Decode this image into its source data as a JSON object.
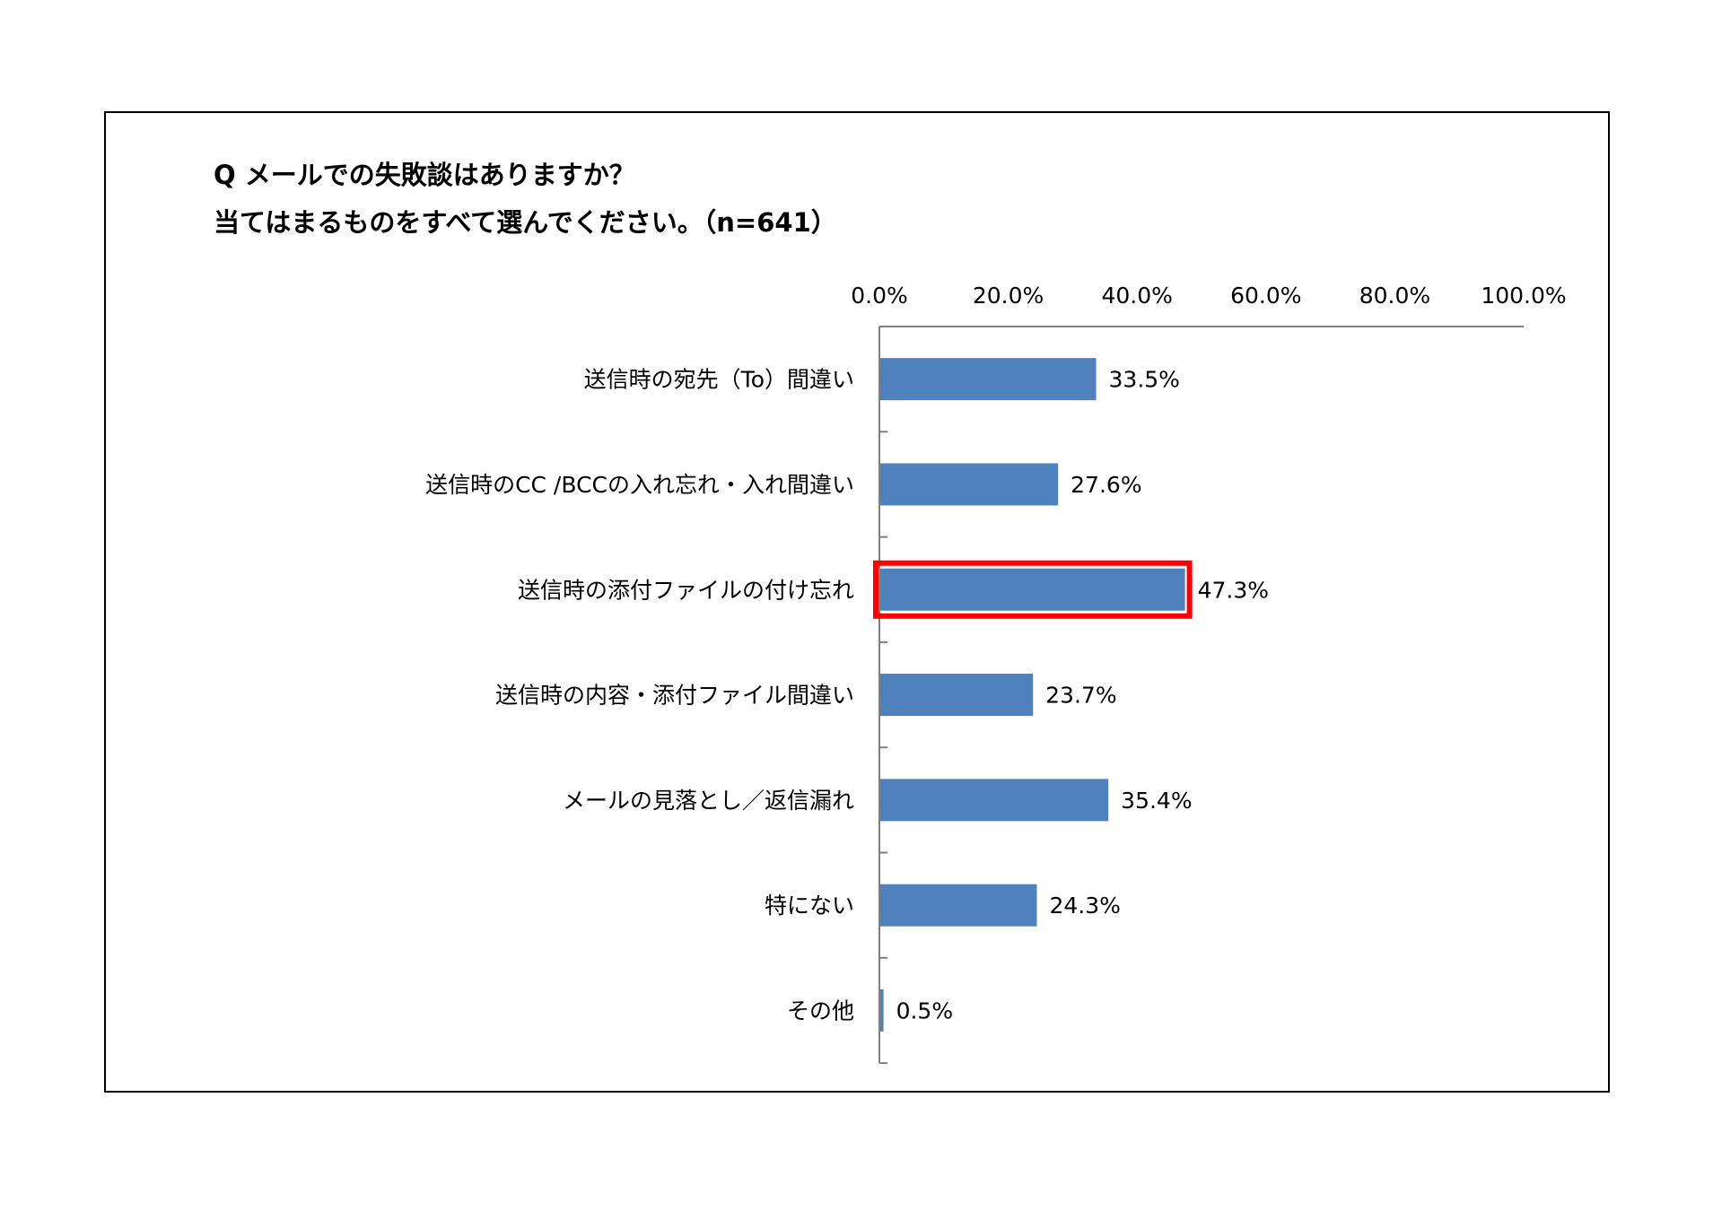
{
  "chart_data": {
    "type": "bar",
    "orientation": "horizontal",
    "title_lines": [
      "Q メールでの失敗談はありますか？",
      "当てはまるものをすべて選んでください。（n=641）"
    ],
    "xlim": [
      0,
      100
    ],
    "tick_labels": [
      "0.0%",
      "20.0%",
      "40.0%",
      "60.0%",
      "80.0%",
      "100.0%"
    ],
    "tick_values": [
      0,
      20,
      40,
      60,
      80,
      100
    ],
    "categories": [
      "送信時の宛先（To）間違い",
      "送信時のCC /BCCの入れ忘れ・入れ間違い",
      "送信時の添付ファイルの付け忘れ",
      "送信時の内容・添付ファイル間違い",
      "メールの見落とし／返信漏れ",
      "特にない",
      "その他"
    ],
    "values": [
      33.5,
      27.6,
      47.3,
      23.7,
      35.4,
      24.3,
      0.5
    ],
    "value_labels": [
      "33.5%",
      "27.6%",
      "47.3%",
      "23.7%",
      "35.4%",
      "24.3%",
      "0.5%"
    ],
    "highlighted_category": "送信時の添付ファイルの付け忘れ",
    "grid": false,
    "legend": "none",
    "colors": {
      "bar": "#4f81bd",
      "highlight_border": "#ff0000",
      "axis": "#808080",
      "text": "#000000"
    }
  }
}
